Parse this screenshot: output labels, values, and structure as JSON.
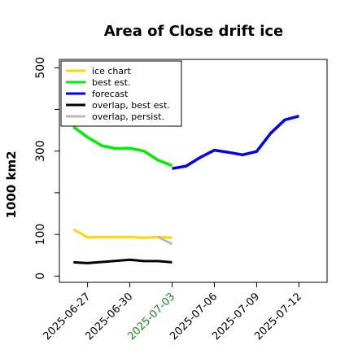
{
  "chart_data": {
    "type": "line",
    "title": "Area of Close drift ice",
    "ylabel": "1000 km2",
    "xlabel": "",
    "ylim": [
      -15,
      520
    ],
    "yticks": [
      0,
      100,
      300,
      500
    ],
    "x_range": [
      "2025-06-25",
      "2025-07-14"
    ],
    "xticks": [
      {
        "label": "2025-06-27",
        "color": "#000000"
      },
      {
        "label": "2025-06-30",
        "color": "#000000"
      },
      {
        "label": "2025-07-03",
        "color": "#1a8a1a"
      },
      {
        "label": "2025-07-06",
        "color": "#000000"
      },
      {
        "label": "2025-07-09",
        "color": "#000000"
      },
      {
        "label": "2025-07-12",
        "color": "#000000"
      }
    ],
    "grid": false,
    "legend_position": "upper-left",
    "series": [
      {
        "name": "ice chart",
        "color": "#ffd700",
        "width": 3,
        "points": [
          [
            "2025-06-26",
            112
          ],
          [
            "2025-06-27",
            93
          ],
          [
            "2025-06-28",
            94
          ],
          [
            "2025-06-29",
            94
          ],
          [
            "2025-06-30",
            94
          ],
          [
            "2025-07-01",
            92
          ],
          [
            "2025-07-02",
            94
          ],
          [
            "2025-07-03",
            92
          ]
        ]
      },
      {
        "name": "best est.",
        "color": "#00ee00",
        "width": 3.5,
        "points": [
          [
            "2025-06-26",
            358
          ],
          [
            "2025-06-27",
            333
          ],
          [
            "2025-06-28",
            313
          ],
          [
            "2025-06-29",
            306
          ],
          [
            "2025-06-30",
            307
          ],
          [
            "2025-07-01",
            300
          ],
          [
            "2025-07-02",
            278
          ],
          [
            "2025-07-03",
            265
          ]
        ]
      },
      {
        "name": "forecast",
        "color": "#0000ee",
        "width": 3.5,
        "points": [
          [
            "2025-07-03",
            258
          ],
          [
            "2025-07-04",
            264
          ],
          [
            "2025-07-05",
            285
          ],
          [
            "2025-07-06",
            302
          ],
          [
            "2025-07-07",
            297
          ],
          [
            "2025-07-08",
            291
          ],
          [
            "2025-07-09",
            299
          ],
          [
            "2025-07-10",
            343
          ],
          [
            "2025-07-11",
            375
          ],
          [
            "2025-07-12",
            384
          ]
        ]
      },
      {
        "name": "overlap, best est.",
        "color": "#000000",
        "width": 3,
        "points": [
          [
            "2025-06-26",
            33
          ],
          [
            "2025-06-27",
            31
          ],
          [
            "2025-06-30",
            39
          ],
          [
            "2025-07-01",
            36
          ],
          [
            "2025-07-02",
            36
          ],
          [
            "2025-07-03",
            33
          ]
        ]
      },
      {
        "name": "overlap, persist.",
        "color": "#bbbbbb",
        "width": 3,
        "points": [
          [
            "2025-07-02",
            94
          ],
          [
            "2025-07-03",
            77
          ]
        ]
      }
    ]
  }
}
